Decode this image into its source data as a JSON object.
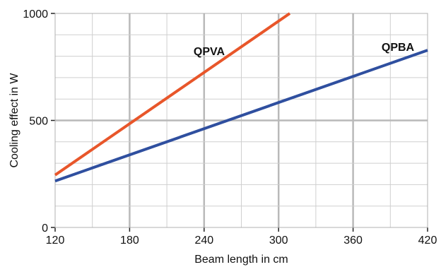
{
  "chart_data": {
    "type": "line",
    "xlabel": "Beam length in cm",
    "ylabel": "Cooling effect in W",
    "xlim": [
      120,
      420
    ],
    "ylim": [
      0,
      1000
    ],
    "x_ticks": [
      "120",
      "180",
      "240",
      "300",
      "360",
      "420"
    ],
    "y_ticks": [
      "0",
      "500",
      "1000"
    ],
    "grid": true,
    "series": [
      {
        "name": "QPVA",
        "color": "#e8562a",
        "x": [
          120,
          309
        ],
        "y": [
          245,
          1000
        ]
      },
      {
        "name": "QPBA",
        "color": "#2f4f9f",
        "x": [
          120,
          420
        ],
        "y": [
          217,
          828
        ]
      }
    ]
  }
}
